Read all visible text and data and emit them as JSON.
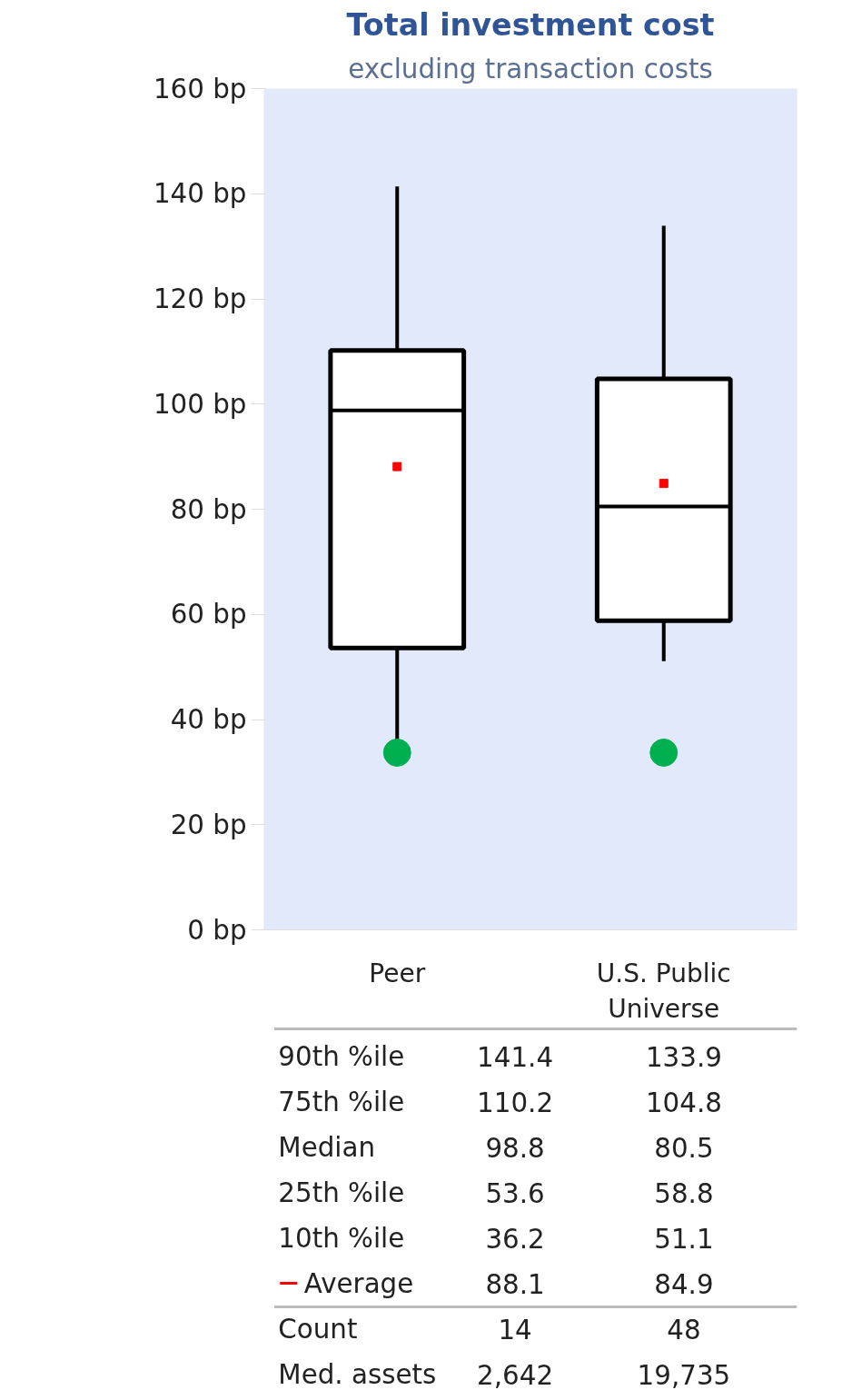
{
  "chart_data": {
    "type": "box",
    "title": "Total investment cost",
    "subtitle": "excluding transaction costs",
    "categories": [
      "Peer",
      "U.S. Public\nUniverse"
    ],
    "boxes": [
      {
        "low": 36.2,
        "q1": 53.6,
        "median": 98.8,
        "q3": 110.2,
        "high": 141.4,
        "mean": 88.1
      },
      {
        "low": 51.1,
        "q1": 58.8,
        "median": 80.5,
        "q3": 104.8,
        "high": 133.9,
        "mean": 84.9
      }
    ],
    "series": [
      {
        "type": "scatter",
        "x": [
          "Peer",
          "U.S. Public\nUniverse"
        ],
        "values": [
          33.7,
          33.7
        ],
        "color": "#00b050"
      }
    ],
    "ylim": [
      0,
      160
    ],
    "yticks": [
      {
        "value": 0,
        "label": "0 bp"
      },
      {
        "value": 20,
        "label": "20 bp"
      },
      {
        "value": 40,
        "label": "40 bp"
      },
      {
        "value": 60,
        "label": "60 bp"
      },
      {
        "value": 80,
        "label": "80 bp"
      },
      {
        "value": 100,
        "label": "100 bp"
      },
      {
        "value": 120,
        "label": "120 bp"
      },
      {
        "value": 140,
        "label": "140 bp"
      },
      {
        "value": 160,
        "label": "160 bp"
      }
    ],
    "grid": false,
    "marker": "circle",
    "annotations": [
      "90th %ile",
      "141.4",
      "133.9",
      "75th %ile",
      "110.2",
      "104.8",
      "Median",
      "98.8",
      "80.5",
      "25th %ile",
      "53.6",
      "58.8",
      "10th %ile",
      "36.2",
      "51.1",
      "Average",
      "88.1",
      "84.9",
      "Count",
      "14",
      "48",
      "Med. assets",
      "2,642",
      "19,735"
    ]
  }
}
